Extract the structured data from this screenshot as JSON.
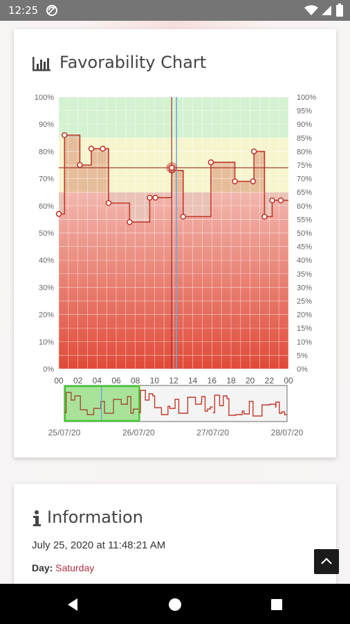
{
  "status_bar": {
    "time": "12:25"
  },
  "chart_card": {
    "title": "Favorability Chart",
    "title_icon": "bar-chart-icon",
    "navigator_dates": [
      "25/07/20",
      "26/07/20",
      "27/07/20",
      "28/07/20"
    ]
  },
  "info_card": {
    "title": "Information",
    "title_icon": "info-icon",
    "date_text": "July 25, 2020 at 11:48:21 AM",
    "day_label": "Day:",
    "day_value": "Saturday"
  },
  "colors": {
    "accent": "#c0392b",
    "green_band": "#cdeec9",
    "yellow_band": "#f4f3c4",
    "cursor_blue": "#6fa7d8"
  },
  "chart_data": {
    "type": "line",
    "step": true,
    "xlabel": "",
    "ylabel": "",
    "x_ticks": [
      "00",
      "02",
      "04",
      "06",
      "08",
      "10",
      "12",
      "14",
      "16",
      "18",
      "20",
      "22",
      "00"
    ],
    "x_range_hours": [
      0,
      24
    ],
    "y_left_ticks": [
      "0%",
      "10%",
      "20%",
      "30%",
      "40%",
      "50%",
      "60%",
      "70%",
      "80%",
      "90%",
      "100%"
    ],
    "y_right_ticks": [
      "0%",
      "5%",
      "10%",
      "15%",
      "20%",
      "25%",
      "30%",
      "35%",
      "40%",
      "45%",
      "50%",
      "55%",
      "60%",
      "65%",
      "70%",
      "75%",
      "80%",
      "85%",
      "90%",
      "95%",
      "100%"
    ],
    "ylim": [
      0,
      100
    ],
    "bands": [
      {
        "from": 85,
        "to": 100,
        "color": "green"
      },
      {
        "from": 65,
        "to": 85,
        "color": "yellow"
      },
      {
        "from": 0,
        "to": 65,
        "color": "red-gradient"
      }
    ],
    "series": [
      {
        "points": [
          {
            "x": 0.0,
            "y": 57
          },
          {
            "x": 0.6,
            "y": 86
          },
          {
            "x": 2.2,
            "y": 75
          },
          {
            "x": 3.4,
            "y": 81
          },
          {
            "x": 4.6,
            "y": 81
          },
          {
            "x": 5.2,
            "y": 61
          },
          {
            "x": 7.4,
            "y": 54
          },
          {
            "x": 9.5,
            "y": 63
          },
          {
            "x": 10.1,
            "y": 63
          },
          {
            "x": 11.8,
            "y": 73
          },
          {
            "x": 13.0,
            "y": 56
          },
          {
            "x": 15.9,
            "y": 76
          },
          {
            "x": 18.4,
            "y": 69
          },
          {
            "x": 20.3,
            "y": 69
          },
          {
            "x": 20.4,
            "y": 80
          },
          {
            "x": 21.5,
            "y": 56
          },
          {
            "x": 22.3,
            "y": 62
          },
          {
            "x": 23.2,
            "y": 62
          }
        ],
        "end_x": 24
      }
    ],
    "crosshair": {
      "x": 11.8,
      "y": 74
    },
    "navigator": {
      "dates": [
        "25/07/20",
        "26/07/20",
        "27/07/20",
        "28/07/20"
      ],
      "selected_days": [
        0,
        1
      ]
    }
  }
}
